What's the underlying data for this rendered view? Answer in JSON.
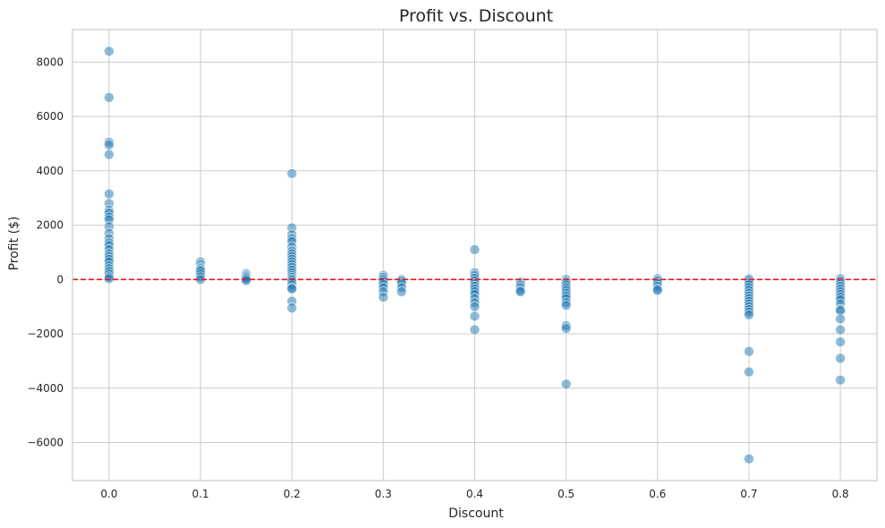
{
  "chart_data": {
    "type": "scatter",
    "title": "Profit vs. Discount",
    "xlabel": "Discount",
    "ylabel": "Profit ($)",
    "xlim": [
      -0.04,
      0.84
    ],
    "ylim": [
      -7400,
      9200
    ],
    "xticks": [
      0.0,
      0.1,
      0.2,
      0.3,
      0.4,
      0.5,
      0.6,
      0.7,
      0.8
    ],
    "xtick_labels": [
      "0.0",
      "0.1",
      "0.2",
      "0.3",
      "0.4",
      "0.5",
      "0.6",
      "0.7",
      "0.8"
    ],
    "yticks": [
      -6000,
      -4000,
      -2000,
      0,
      2000,
      4000,
      6000,
      8000
    ],
    "ytick_labels": [
      "−6000",
      "−4000",
      "−2000",
      "0",
      "2000",
      "4000",
      "6000",
      "8000"
    ],
    "grid": true,
    "reference_line": {
      "y": 0,
      "style": "dashed",
      "color": "#e41a1c"
    },
    "colors": {
      "points": "#1f77b4",
      "reference_line": "#e41a1c",
      "grid": "#cccccc"
    },
    "points": [
      [
        0.0,
        8400
      ],
      [
        0.0,
        6700
      ],
      [
        0.0,
        5050
      ],
      [
        0.0,
        4950
      ],
      [
        0.0,
        4600
      ],
      [
        0.0,
        3150
      ],
      [
        0.0,
        2800
      ],
      [
        0.0,
        2550
      ],
      [
        0.0,
        2450
      ],
      [
        0.0,
        2300
      ],
      [
        0.0,
        2200
      ],
      [
        0.0,
        1950
      ],
      [
        0.0,
        1700
      ],
      [
        0.0,
        1500
      ],
      [
        0.0,
        1350
      ],
      [
        0.0,
        1250
      ],
      [
        0.0,
        1100
      ],
      [
        0.0,
        950
      ],
      [
        0.0,
        850
      ],
      [
        0.0,
        750
      ],
      [
        0.0,
        650
      ],
      [
        0.0,
        500
      ],
      [
        0.0,
        400
      ],
      [
        0.0,
        300
      ],
      [
        0.0,
        200
      ],
      [
        0.0,
        100
      ],
      [
        0.0,
        30
      ],
      [
        0.1,
        650
      ],
      [
        0.1,
        550
      ],
      [
        0.1,
        450
      ],
      [
        0.1,
        400
      ],
      [
        0.1,
        350
      ],
      [
        0.1,
        300
      ],
      [
        0.1,
        200
      ],
      [
        0.1,
        100
      ],
      [
        0.1,
        0
      ],
      [
        0.15,
        220
      ],
      [
        0.15,
        170
      ],
      [
        0.15,
        120
      ],
      [
        0.15,
        70
      ],
      [
        0.15,
        20
      ],
      [
        0.15,
        -40
      ],
      [
        0.2,
        3900
      ],
      [
        0.2,
        1900
      ],
      [
        0.2,
        1650
      ],
      [
        0.2,
        1500
      ],
      [
        0.2,
        1400
      ],
      [
        0.2,
        1200
      ],
      [
        0.2,
        1050
      ],
      [
        0.2,
        950
      ],
      [
        0.2,
        850
      ],
      [
        0.2,
        750
      ],
      [
        0.2,
        650
      ],
      [
        0.2,
        550
      ],
      [
        0.2,
        450
      ],
      [
        0.2,
        350
      ],
      [
        0.2,
        250
      ],
      [
        0.2,
        150
      ],
      [
        0.2,
        80
      ],
      [
        0.2,
        20
      ],
      [
        0.2,
        -30
      ],
      [
        0.2,
        -100
      ],
      [
        0.2,
        -200
      ],
      [
        0.2,
        -300
      ],
      [
        0.2,
        -350
      ],
      [
        0.2,
        -800
      ],
      [
        0.2,
        -1050
      ],
      [
        0.3,
        150
      ],
      [
        0.3,
        80
      ],
      [
        0.3,
        0
      ],
      [
        0.3,
        -80
      ],
      [
        0.3,
        -180
      ],
      [
        0.3,
        -300
      ],
      [
        0.3,
        -450
      ],
      [
        0.3,
        -650
      ],
      [
        0.32,
        0
      ],
      [
        0.32,
        -60
      ],
      [
        0.32,
        -150
      ],
      [
        0.32,
        -300
      ],
      [
        0.32,
        -450
      ],
      [
        0.4,
        1100
      ],
      [
        0.4,
        250
      ],
      [
        0.4,
        150
      ],
      [
        0.4,
        50
      ],
      [
        0.4,
        -50
      ],
      [
        0.4,
        -150
      ],
      [
        0.4,
        -250
      ],
      [
        0.4,
        -350
      ],
      [
        0.4,
        -450
      ],
      [
        0.4,
        -550
      ],
      [
        0.4,
        -700
      ],
      [
        0.4,
        -850
      ],
      [
        0.4,
        -1000
      ],
      [
        0.4,
        -1350
      ],
      [
        0.4,
        -1850
      ],
      [
        0.45,
        -100
      ],
      [
        0.45,
        -200
      ],
      [
        0.45,
        -300
      ],
      [
        0.45,
        -400
      ],
      [
        0.45,
        -450
      ],
      [
        0.5,
        0
      ],
      [
        0.5,
        -100
      ],
      [
        0.5,
        -200
      ],
      [
        0.5,
        -300
      ],
      [
        0.5,
        -400
      ],
      [
        0.5,
        -500
      ],
      [
        0.5,
        -600
      ],
      [
        0.5,
        -700
      ],
      [
        0.5,
        -850
      ],
      [
        0.5,
        -950
      ],
      [
        0.5,
        -1700
      ],
      [
        0.5,
        -1800
      ],
      [
        0.5,
        -3850
      ],
      [
        0.6,
        30
      ],
      [
        0.6,
        -50
      ],
      [
        0.6,
        -150
      ],
      [
        0.6,
        -250
      ],
      [
        0.6,
        -350
      ],
      [
        0.6,
        -400
      ],
      [
        0.7,
        30
      ],
      [
        0.7,
        -30
      ],
      [
        0.7,
        -120
      ],
      [
        0.7,
        -200
      ],
      [
        0.7,
        -300
      ],
      [
        0.7,
        -400
      ],
      [
        0.7,
        -500
      ],
      [
        0.7,
        -600
      ],
      [
        0.7,
        -700
      ],
      [
        0.7,
        -800
      ],
      [
        0.7,
        -900
      ],
      [
        0.7,
        -1000
      ],
      [
        0.7,
        -1100
      ],
      [
        0.7,
        -1200
      ],
      [
        0.7,
        -1300
      ],
      [
        0.7,
        -2650
      ],
      [
        0.7,
        -3400
      ],
      [
        0.7,
        -6600
      ],
      [
        0.8,
        30
      ],
      [
        0.8,
        -50
      ],
      [
        0.8,
        -150
      ],
      [
        0.8,
        -250
      ],
      [
        0.8,
        -350
      ],
      [
        0.8,
        -450
      ],
      [
        0.8,
        -550
      ],
      [
        0.8,
        -650
      ],
      [
        0.8,
        -750
      ],
      [
        0.8,
        -900
      ],
      [
        0.8,
        -1100
      ],
      [
        0.8,
        -1150
      ],
      [
        0.8,
        -1450
      ],
      [
        0.8,
        -1850
      ],
      [
        0.8,
        -2300
      ],
      [
        0.8,
        -2900
      ],
      [
        0.8,
        -3700
      ]
    ]
  }
}
